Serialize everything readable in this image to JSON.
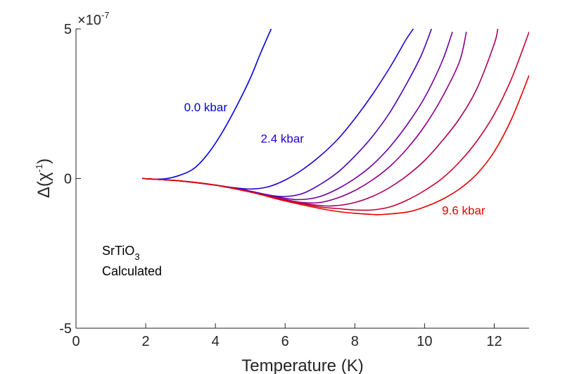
{
  "chart_data": {
    "type": "line",
    "title": "",
    "xlabel": "Temperature (K)",
    "ylabel_prefix": "Δ(χ",
    "ylabel_exp": "-1",
    "ylabel_suffix": ")",
    "xlim": [
      0,
      13
    ],
    "ylim": [
      -5,
      5
    ],
    "y_scale_base": "×10",
    "y_scale_exp": "-7",
    "xticks": [
      0,
      2,
      4,
      6,
      8,
      10,
      12
    ],
    "xtick_labels": [
      "0",
      "2",
      "4",
      "6",
      "8",
      "10",
      "12"
    ],
    "yticks": [
      -5,
      0,
      5
    ],
    "ytick_labels": [
      "-5",
      "0",
      "5"
    ],
    "series": [
      {
        "name": "0.0 kbar",
        "color": "#0000e6",
        "labeled": true,
        "x": [
          1.9,
          2.2,
          2.6,
          3.0,
          3.4,
          3.8,
          4.2,
          4.6,
          5.0,
          5.3,
          5.6
        ],
        "y": [
          0.0,
          -0.02,
          0.0,
          0.12,
          0.35,
          0.85,
          1.55,
          2.4,
          3.35,
          4.2,
          5.0
        ]
      },
      {
        "name": "2.4 kbar",
        "color": "#2200d8",
        "labeled": true,
        "x": [
          1.9,
          2.5,
          3.0,
          4.0,
          4.5,
          5.0,
          5.5,
          6.0,
          6.5,
          7.0,
          7.5,
          8.0,
          8.5,
          9.0,
          9.3,
          9.5,
          9.8
        ],
        "y": [
          0.0,
          -0.04,
          -0.08,
          -0.22,
          -0.3,
          -0.35,
          -0.28,
          -0.05,
          0.3,
          0.75,
          1.3,
          2.0,
          2.8,
          3.7,
          4.3,
          4.7,
          5.2
        ]
      },
      {
        "name": "",
        "color": "#4c00b8",
        "labeled": false,
        "x": [
          1.9,
          3.0,
          4.0,
          5.0,
          5.5,
          6.0,
          6.5,
          7.0,
          7.5,
          8.0,
          8.5,
          9.0,
          9.5,
          9.9,
          10.2
        ],
        "y": [
          0.0,
          -0.08,
          -0.22,
          -0.42,
          -0.55,
          -0.6,
          -0.5,
          -0.2,
          0.2,
          0.75,
          1.4,
          2.2,
          3.2,
          4.1,
          5.0
        ]
      },
      {
        "name": "",
        "color": "#6e00a0",
        "labeled": false,
        "x": [
          1.9,
          3.0,
          4.0,
          5.0,
          6.0,
          6.5,
          7.0,
          7.5,
          8.0,
          8.5,
          9.0,
          9.5,
          10.0,
          10.5,
          10.8
        ],
        "y": [
          0.0,
          -0.08,
          -0.22,
          -0.42,
          -0.66,
          -0.7,
          -0.6,
          -0.35,
          0.0,
          0.45,
          1.05,
          1.8,
          2.7,
          3.9,
          4.9
        ]
      },
      {
        "name": "",
        "color": "#8a0088",
        "labeled": false,
        "x": [
          1.9,
          3.0,
          4.0,
          5.0,
          6.0,
          6.5,
          7.0,
          7.5,
          8.0,
          8.5,
          9.0,
          9.5,
          10.0,
          10.5,
          11.0,
          11.2
        ],
        "y": [
          0.0,
          -0.08,
          -0.22,
          -0.45,
          -0.7,
          -0.8,
          -0.8,
          -0.65,
          -0.4,
          -0.05,
          0.4,
          1.0,
          1.75,
          2.7,
          3.9,
          4.9
        ]
      },
      {
        "name": "",
        "color": "#a80060",
        "labeled": false,
        "x": [
          1.9,
          3.0,
          4.0,
          5.0,
          6.0,
          7.0,
          7.5,
          8.0,
          8.5,
          9.0,
          9.5,
          10.0,
          10.5,
          11.0,
          11.5,
          12.0,
          12.1
        ],
        "y": [
          0.0,
          -0.08,
          -0.22,
          -0.45,
          -0.72,
          -0.9,
          -0.9,
          -0.8,
          -0.6,
          -0.3,
          0.1,
          0.6,
          1.25,
          2.0,
          3.0,
          4.5,
          5.0
        ]
      },
      {
        "name": "",
        "color": "#c80030",
        "labeled": false,
        "x": [
          1.9,
          3.0,
          4.0,
          5.0,
          6.0,
          7.0,
          7.5,
          8.0,
          8.5,
          9.0,
          9.5,
          10.0,
          10.5,
          11.0,
          11.5,
          12.0,
          12.5,
          13.0
        ],
        "y": [
          0.0,
          -0.08,
          -0.22,
          -0.45,
          -0.72,
          -0.95,
          -1.0,
          -1.05,
          -1.05,
          -0.95,
          -0.72,
          -0.4,
          0.0,
          0.55,
          1.25,
          2.15,
          3.35,
          4.9
        ]
      },
      {
        "name": "9.6 kbar",
        "color": "#e60000",
        "labeled": true,
        "x": [
          1.9,
          3.0,
          4.0,
          5.0,
          6.0,
          7.0,
          7.5,
          8.0,
          8.5,
          8.8,
          9.5,
          10.0,
          10.5,
          11.0,
          11.5,
          12.0,
          12.5,
          13.0
        ],
        "y": [
          0.0,
          -0.08,
          -0.22,
          -0.45,
          -0.75,
          -1.0,
          -1.1,
          -1.16,
          -1.2,
          -1.2,
          -1.12,
          -0.95,
          -0.7,
          -0.35,
          0.15,
          0.9,
          2.0,
          3.45
        ]
      }
    ],
    "series_labels": [
      {
        "text": "0.0 kbar",
        "color": "#0000e6",
        "x": 3.1,
        "y": 2.25
      },
      {
        "text": "2.4 kbar",
        "color": "#2200d8",
        "x": 5.3,
        "y": 1.2
      },
      {
        "text": "9.6 kbar",
        "color": "#e60000",
        "x": 10.5,
        "y": -1.2
      }
    ],
    "annotations": {
      "material": "SrTiO",
      "material_sub": "3",
      "note": "Calculated"
    }
  }
}
